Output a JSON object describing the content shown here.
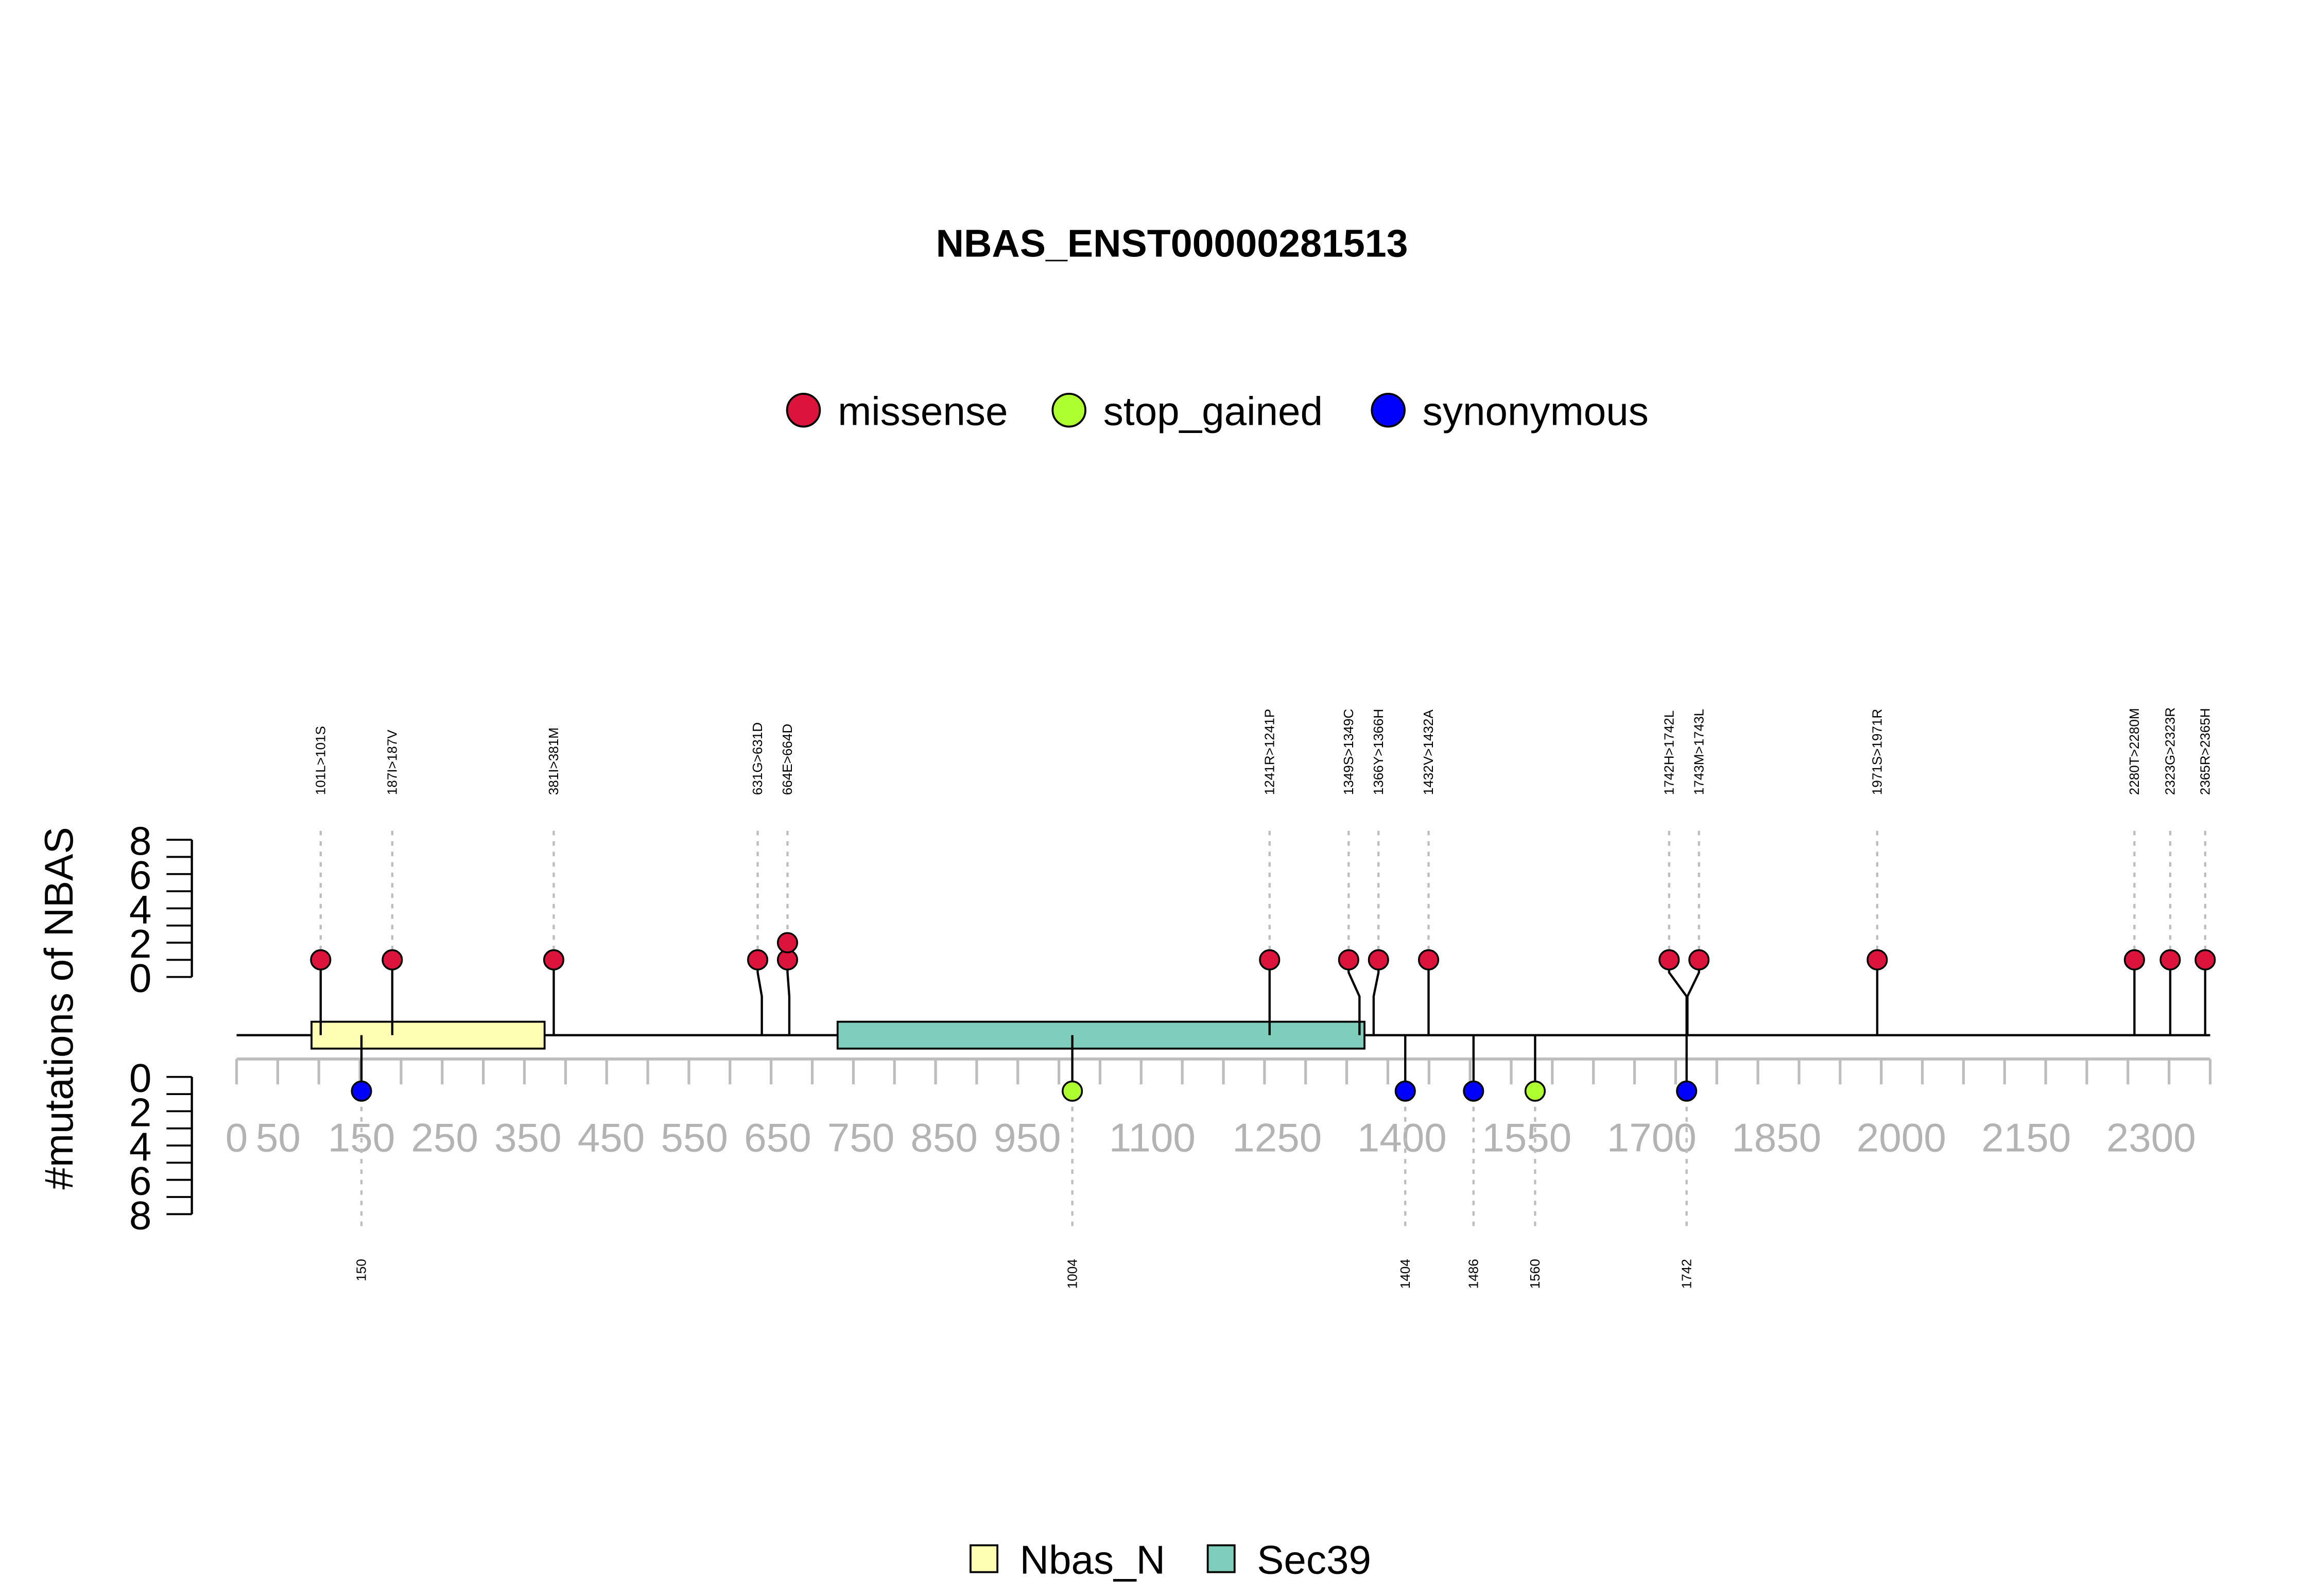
{
  "chart_data": {
    "type": "lollipop",
    "title": "NBAS_ENST00000281513",
    "ylabel": "#mutations of NBAS",
    "legend_top": [
      {
        "label": "missense",
        "color": "#DC143C"
      },
      {
        "label": "stop_gained",
        "color": "#ADFF2F"
      },
      {
        "label": "synonymous",
        "color": "#0000FF"
      }
    ],
    "legend_bottom": [
      {
        "label": "Nbas_N",
        "color": "#FFFFB3"
      },
      {
        "label": "Sec39",
        "color": "#7FCDBB"
      }
    ],
    "x_range": [
      0,
      2371
    ],
    "x_ticks": [
      "0",
      "50",
      "150",
      "250",
      "350",
      "450",
      "550",
      "650",
      "750",
      "850",
      "950",
      "1100",
      "1250",
      "1400",
      "1550",
      "1700",
      "1850",
      "2000",
      "2150",
      "2300"
    ],
    "y_upper_ticks": [
      "0",
      "2",
      "4",
      "6",
      "8"
    ],
    "y_lower_ticks": [
      "0",
      "2",
      "4",
      "6",
      "8"
    ],
    "y_lim": [
      0,
      8
    ],
    "domains": [
      {
        "name": "Nbas_N",
        "start": 90,
        "end": 370
      },
      {
        "name": "Sec39",
        "start": 722,
        "end": 1355
      }
    ],
    "upper_mutations": [
      {
        "label": "101L>101S",
        "position": 101,
        "count": 1,
        "type": "missense"
      },
      {
        "label": "187I>187V",
        "position": 187,
        "count": 1,
        "type": "missense"
      },
      {
        "label": "381I>381M",
        "position": 381,
        "count": 1,
        "type": "missense"
      },
      {
        "label": "631G>631D",
        "position": 631,
        "count": 1,
        "type": "missense"
      },
      {
        "label": "664E>664D",
        "position": 664,
        "count": 2,
        "type": "missense"
      },
      {
        "label": "1241R>1241P",
        "position": 1241,
        "count": 1,
        "type": "missense"
      },
      {
        "label": "1349S>1349C",
        "position": 1349,
        "count": 1,
        "type": "missense"
      },
      {
        "label": "1366Y>1366H",
        "position": 1366,
        "count": 1,
        "type": "missense"
      },
      {
        "label": "1432V>1432A",
        "position": 1432,
        "count": 1,
        "type": "missense"
      },
      {
        "label": "1742H>1742L",
        "position": 1742,
        "count": 1,
        "type": "missense"
      },
      {
        "label": "1743M>1743L",
        "position": 1743,
        "count": 1,
        "type": "missense"
      },
      {
        "label": "1971S>1971R",
        "position": 1971,
        "count": 1,
        "type": "missense"
      },
      {
        "label": "2280T>2280M",
        "position": 2280,
        "count": 1,
        "type": "missense"
      },
      {
        "label": "2323G>2323R",
        "position": 2323,
        "count": 1,
        "type": "missense"
      },
      {
        "label": "2365R>2365H",
        "position": 2365,
        "count": 1,
        "type": "missense"
      }
    ],
    "lower_mutations": [
      {
        "label": "150",
        "position": 150,
        "count": 1,
        "type": "synonymous"
      },
      {
        "label": "1004",
        "position": 1004,
        "count": 1,
        "type": "stop_gained"
      },
      {
        "label": "1404",
        "position": 1404,
        "count": 1,
        "type": "synonymous"
      },
      {
        "label": "1486",
        "position": 1486,
        "count": 1,
        "type": "synonymous"
      },
      {
        "label": "1560",
        "position": 1560,
        "count": 1,
        "type": "stop_gained"
      },
      {
        "label": "1742",
        "position": 1742,
        "count": 1,
        "type": "synonymous"
      }
    ]
  }
}
